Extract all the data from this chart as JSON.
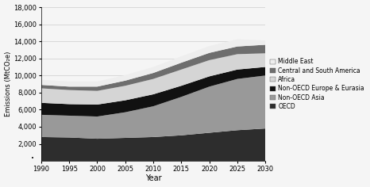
{
  "years": [
    1990,
    1995,
    2000,
    2005,
    2010,
    2015,
    2020,
    2025,
    2030
  ],
  "series": {
    "OECD": [
      2800,
      2750,
      2600,
      2700,
      2800,
      3000,
      3300,
      3600,
      3800
    ],
    "Non-OECD Asia": [
      2600,
      2550,
      2600,
      3000,
      3600,
      4500,
      5400,
      6000,
      6200
    ],
    "Non-OECD Europe & Eurasia": [
      1400,
      1350,
      1400,
      1400,
      1400,
      1300,
      1200,
      1100,
      1000
    ],
    "Africa": [
      1700,
      1650,
      1600,
      1700,
      1800,
      1900,
      1900,
      1800,
      1600
    ],
    "Central and South America": [
      400,
      400,
      500,
      600,
      700,
      800,
      850,
      900,
      1000
    ],
    "Middle East": [
      600,
      600,
      600,
      650,
      700,
      750,
      800,
      850,
      500
    ]
  },
  "colors": {
    "OECD": "#2d2d2d",
    "Non-OECD Asia": "#999999",
    "Non-OECD Europe & Eurasia": "#111111",
    "Africa": "#d5d5d5",
    "Central and South America": "#6e6e6e",
    "Middle East": "#eeeeee"
  },
  "ylabel": "Emissions (MtCO₂e)",
  "xlabel": "Year",
  "ylim": [
    0,
    18000
  ],
  "yticks": [
    2000,
    4000,
    6000,
    8000,
    10000,
    12000,
    14000,
    16000,
    18000
  ],
  "background_color": "#f5f5f5"
}
